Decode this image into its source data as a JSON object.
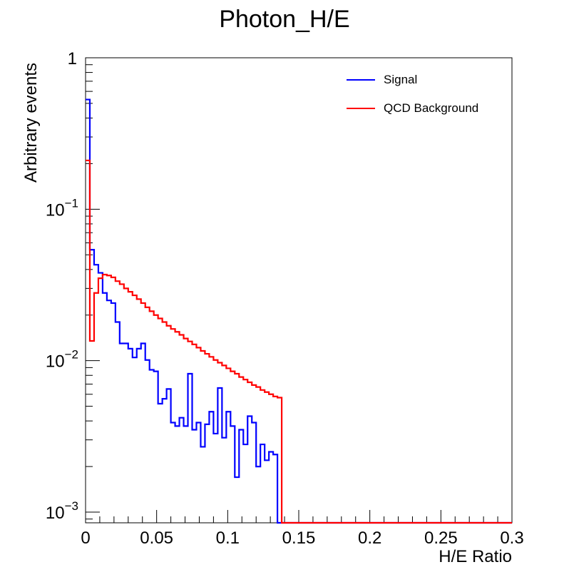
{
  "chart_data": {
    "type": "line",
    "title": "Photon_H/E",
    "xlabel": "H/E Ratio",
    "ylabel": "Arbitrary events",
    "xlim": [
      0,
      0.3
    ],
    "ylim": [
      0.00085,
      1.0
    ],
    "yscale": "log",
    "bin_width": 0.003,
    "grid": false,
    "legend_position": "top-right",
    "x_tick_labels": [
      "0",
      "0.05",
      "0.1",
      "0.15",
      "0.2",
      "0.25",
      "0.3"
    ],
    "y_tick_labels": [
      {
        "value": 1,
        "base": "1",
        "exp": ""
      },
      {
        "value": 0.1,
        "base": "10",
        "exp": "−1"
      },
      {
        "value": 0.01,
        "base": "10",
        "exp": "−2"
      },
      {
        "value": 0.001,
        "base": "10",
        "exp": "−3"
      }
    ],
    "series": [
      {
        "name": "Signal",
        "color": "#0000ff",
        "values": [
          0.53,
          0.054,
          0.043,
          0.038,
          0.028,
          0.025,
          0.024,
          0.018,
          0.013,
          0.013,
          0.012,
          0.0105,
          0.012,
          0.013,
          0.0101,
          0.0087,
          0.0085,
          0.0052,
          0.0056,
          0.0065,
          0.0039,
          0.0037,
          0.0042,
          0.0037,
          0.0082,
          0.0035,
          0.0039,
          0.0027,
          0.0038,
          0.0046,
          0.0033,
          0.0066,
          0.0031,
          0.0046,
          0.0037,
          0.0017,
          0.0035,
          0.0028,
          0.0043,
          0.0039,
          0.002,
          0.0028,
          0.0022,
          0.0025,
          0.0024,
          0,
          0,
          0,
          0,
          0,
          0,
          0,
          0,
          0,
          0,
          0,
          0,
          0,
          0,
          0,
          0,
          0,
          0,
          0,
          0,
          0,
          0,
          0,
          0,
          0,
          0,
          0,
          0,
          0,
          0,
          0,
          0,
          0,
          0,
          0,
          0,
          0,
          0,
          0,
          0,
          0,
          0,
          0,
          0,
          0,
          0,
          0,
          0,
          0,
          0,
          0,
          0,
          0,
          0,
          0
        ]
      },
      {
        "name": "QCD Background",
        "color": "#ff0000",
        "values": [
          0.21,
          0.0135,
          0.028,
          0.035,
          0.037,
          0.0365,
          0.0355,
          0.0335,
          0.032,
          0.03,
          0.0285,
          0.027,
          0.0255,
          0.024,
          0.0225,
          0.0212,
          0.02,
          0.019,
          0.018,
          0.017,
          0.0162,
          0.0155,
          0.0148,
          0.014,
          0.0134,
          0.0128,
          0.0122,
          0.0116,
          0.0111,
          0.0106,
          0.0101,
          0.0097,
          0.0093,
          0.0089,
          0.0085,
          0.0082,
          0.0078,
          0.0075,
          0.0072,
          0.0069,
          0.0067,
          0.0064,
          0.0062,
          0.006,
          0.0058,
          0.0057,
          0,
          0,
          0,
          0,
          0,
          0,
          0,
          0,
          0,
          0,
          0,
          0,
          0,
          0,
          0,
          0,
          0,
          0,
          0,
          0,
          0,
          0,
          0,
          0,
          0,
          0,
          0,
          0,
          0,
          0,
          0,
          0,
          0,
          0,
          0,
          0,
          0,
          0,
          0,
          0,
          0,
          0,
          0,
          0,
          0,
          0,
          0,
          0,
          0,
          0,
          0,
          0,
          0,
          0
        ]
      }
    ]
  }
}
